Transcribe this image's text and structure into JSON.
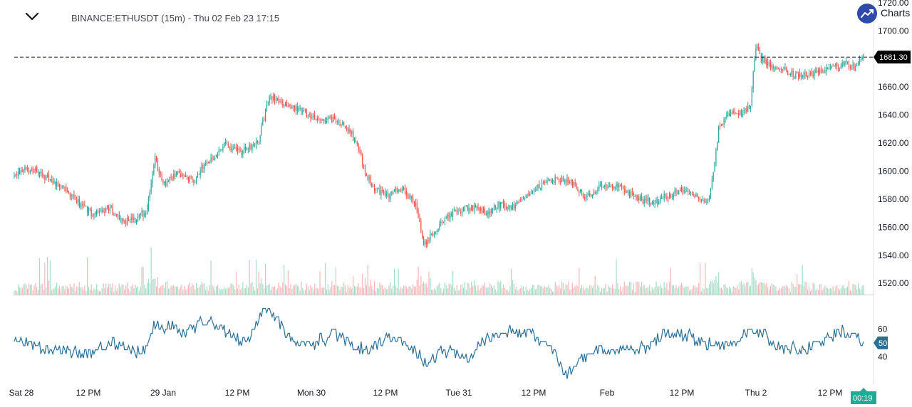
{
  "header": {
    "symbol_title": "BINANCE:ETHUSDT (15m) - Thu 02 Feb 23 17:15",
    "brand_text": "Charts",
    "brand_text_suffix": "|",
    "collapse_icon": "chevron-down-icon",
    "brand_icon": "chart-trend-icon"
  },
  "colors": {
    "up": "#26a69a",
    "down": "#ef5350",
    "up_volume": "#a5dcc9",
    "down_volume": "#f5b8b5",
    "rsi_line": "#2a6f97",
    "price_tag_bg": "#000000",
    "rsi_tag_bg": "#2a6f97",
    "time_tag_bg": "#22ab94",
    "axis_text": "#131722",
    "brand": "#2f4aa8"
  },
  "price_tag": "1681.30",
  "rsi_tag": "50",
  "time_tag": "00:19",
  "chart_data": [
    {
      "type": "candlestick",
      "title": "BINANCE:ETHUSDT (15m) - Thu 02 Feb 23 17:15",
      "x_tick_labels": [
        "Sat 28",
        "12 PM",
        "29 Jan",
        "12 PM",
        "Mon 30",
        "12 PM",
        "Tue 31",
        "12 PM",
        "Feb",
        "12 PM",
        "Thu 2",
        "12 PM"
      ],
      "y_tick_labels": [
        "1720.00",
        "1700.00",
        "1660.00",
        "1640.00",
        "1620.00",
        "1600.00",
        "1580.00",
        "1560.00",
        "1540.00",
        "1520.00"
      ],
      "ylim": [
        1512,
        1722
      ],
      "current_price": 1681.3,
      "close_anchors": [
        [
          0,
          1597
        ],
        [
          8,
          1602
        ],
        [
          18,
          1600
        ],
        [
          28,
          1593
        ],
        [
          40,
          1585
        ],
        [
          48,
          1578
        ],
        [
          60,
          1568
        ],
        [
          70,
          1574
        ],
        [
          76,
          1570
        ],
        [
          84,
          1564
        ],
        [
          92,
          1566
        ],
        [
          100,
          1572
        ],
        [
          106,
          1610
        ],
        [
          112,
          1590
        ],
        [
          122,
          1598
        ],
        [
          136,
          1593
        ],
        [
          142,
          1604
        ],
        [
          150,
          1610
        ],
        [
          158,
          1620
        ],
        [
          166,
          1615
        ],
        [
          172,
          1614
        ],
        [
          184,
          1622
        ],
        [
          192,
          1655
        ],
        [
          200,
          1648
        ],
        [
          214,
          1645
        ],
        [
          224,
          1638
        ],
        [
          234,
          1637
        ],
        [
          244,
          1636
        ],
        [
          254,
          1626
        ],
        [
          260,
          1614
        ],
        [
          264,
          1598
        ],
        [
          272,
          1587
        ],
        [
          280,
          1582
        ],
        [
          292,
          1588
        ],
        [
          302,
          1576
        ],
        [
          308,
          1548
        ],
        [
          312,
          1552
        ],
        [
          320,
          1562
        ],
        [
          330,
          1570
        ],
        [
          344,
          1574
        ],
        [
          356,
          1570
        ],
        [
          366,
          1576
        ],
        [
          376,
          1575
        ],
        [
          388,
          1583
        ],
        [
          400,
          1593
        ],
        [
          410,
          1594
        ],
        [
          418,
          1593
        ],
        [
          424,
          1587
        ],
        [
          430,
          1582
        ],
        [
          440,
          1588
        ],
        [
          450,
          1590
        ],
        [
          460,
          1586
        ],
        [
          470,
          1580
        ],
        [
          482,
          1578
        ],
        [
          492,
          1583
        ],
        [
          502,
          1586
        ],
        [
          510,
          1585
        ],
        [
          518,
          1580
        ],
        [
          522,
          1578
        ],
        [
          526,
          1600
        ],
        [
          530,
          1630
        ],
        [
          538,
          1642
        ],
        [
          548,
          1641
        ],
        [
          554,
          1648
        ],
        [
          558,
          1690
        ],
        [
          562,
          1680
        ],
        [
          570,
          1675
        ],
        [
          578,
          1672
        ],
        [
          590,
          1668
        ],
        [
          602,
          1670
        ],
        [
          616,
          1674
        ],
        [
          626,
          1677
        ],
        [
          632,
          1673
        ],
        [
          638,
          1681.3
        ]
      ],
      "volume_note": "volume histogram in the lower part of the price pane, colored by candle direction",
      "rsi": {
        "type": "line",
        "y_tick_labels": [
          "60",
          "40"
        ],
        "ylim": [
          20,
          82
        ],
        "current_value": 50,
        "anchors": [
          [
            0,
            55
          ],
          [
            10,
            50
          ],
          [
            20,
            46
          ],
          [
            30,
            45
          ],
          [
            40,
            44
          ],
          [
            50,
            42
          ],
          [
            56,
            43
          ],
          [
            66,
            46
          ],
          [
            74,
            50
          ],
          [
            80,
            45
          ],
          [
            86,
            48
          ],
          [
            92,
            44
          ],
          [
            100,
            48
          ],
          [
            106,
            63
          ],
          [
            112,
            60
          ],
          [
            120,
            64
          ],
          [
            128,
            55
          ],
          [
            136,
            62
          ],
          [
            142,
            64
          ],
          [
            150,
            65
          ],
          [
            160,
            58
          ],
          [
            168,
            52
          ],
          [
            178,
            54
          ],
          [
            186,
            72
          ],
          [
            192,
            75
          ],
          [
            198,
            67
          ],
          [
            206,
            55
          ],
          [
            216,
            50
          ],
          [
            224,
            49
          ],
          [
            232,
            53
          ],
          [
            240,
            56
          ],
          [
            248,
            52
          ],
          [
            258,
            46
          ],
          [
            264,
            45
          ],
          [
            272,
            49
          ],
          [
            282,
            55
          ],
          [
            292,
            50
          ],
          [
            302,
            44
          ],
          [
            308,
            37
          ],
          [
            314,
            36
          ],
          [
            322,
            44
          ],
          [
            332,
            42
          ],
          [
            340,
            38
          ],
          [
            348,
            46
          ],
          [
            356,
            54
          ],
          [
            364,
            57
          ],
          [
            376,
            60
          ],
          [
            388,
            55
          ],
          [
            400,
            52
          ],
          [
            406,
            44
          ],
          [
            412,
            31
          ],
          [
            418,
            28
          ],
          [
            426,
            36
          ],
          [
            436,
            46
          ],
          [
            446,
            44
          ],
          [
            458,
            46
          ],
          [
            468,
            44
          ],
          [
            478,
            48
          ],
          [
            486,
            54
          ],
          [
            494,
            58
          ],
          [
            500,
            56
          ],
          [
            510,
            54
          ],
          [
            518,
            50
          ],
          [
            524,
            48
          ],
          [
            530,
            47
          ],
          [
            538,
            50
          ],
          [
            550,
            56
          ],
          [
            558,
            58
          ],
          [
            566,
            55
          ],
          [
            574,
            47
          ],
          [
            584,
            46
          ],
          [
            594,
            44
          ],
          [
            604,
            50
          ],
          [
            614,
            55
          ],
          [
            622,
            58
          ],
          [
            630,
            56
          ],
          [
            638,
            50
          ]
        ]
      }
    }
  ]
}
